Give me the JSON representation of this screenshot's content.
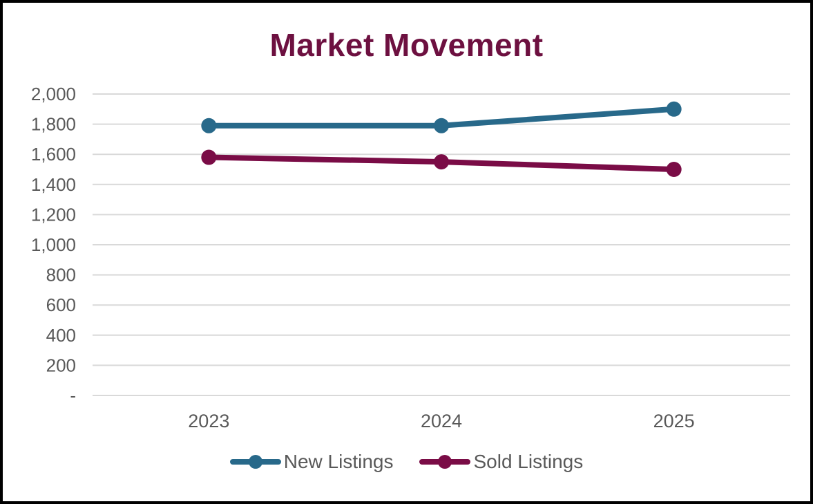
{
  "chart_data": {
    "type": "line",
    "title": "Market Movement",
    "categories": [
      "2023",
      "2024",
      "2025"
    ],
    "series": [
      {
        "name": "New Listings",
        "values": [
          1790,
          1790,
          1900
        ],
        "color": "#28698A"
      },
      {
        "name": "Sold Listings",
        "values": [
          1580,
          1550,
          1500
        ],
        "color": "#7A0C46"
      }
    ],
    "ylabel": "",
    "xlabel": "",
    "ylim": [
      0,
      2000
    ],
    "ytick_step": 200,
    "ytick_labels": [
      "-",
      "200",
      "400",
      "600",
      "800",
      "1,000",
      "1,200",
      "1,400",
      "1,600",
      "1,800",
      "2,000"
    ],
    "grid": true,
    "legend_position": "bottom"
  },
  "colors": {
    "title": "#6D1040",
    "axis_text": "#595959",
    "gridline": "#D9D9D9",
    "background": "#FFFFFF",
    "frame_border": "#000000"
  }
}
